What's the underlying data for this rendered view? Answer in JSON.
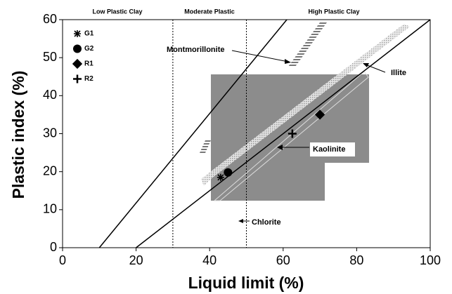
{
  "chart_data": {
    "type": "scatter",
    "xlabel": "Liquid limit (%)",
    "ylabel": "Plastic index (%)",
    "xlim": [
      0,
      100
    ],
    "ylim": [
      0,
      60
    ],
    "xticks": [
      0,
      20,
      40,
      60,
      80,
      100
    ],
    "yticks": [
      0,
      10,
      20,
      30,
      40,
      50,
      60
    ],
    "series": [
      {
        "name": "G1",
        "marker": "star",
        "color": "#000000",
        "x": [
          43
        ],
        "values": [
          18.5
        ]
      },
      {
        "name": "G2",
        "marker": "circle",
        "color": "#000000",
        "x": [
          45
        ],
        "values": [
          19.8
        ]
      },
      {
        "name": "R1",
        "marker": "diamond",
        "color": "#000000",
        "x": [
          70
        ],
        "values": [
          35
        ]
      },
      {
        "name": "R2",
        "marker": "plus",
        "color": "#000000",
        "x": [
          62.5
        ],
        "values": [
          30
        ]
      }
    ],
    "lines": [
      {
        "x": [
          10,
          61
        ],
        "values": [
          0,
          60
        ]
      },
      {
        "x": [
          20,
          100
        ],
        "values": [
          0,
          60
        ]
      }
    ],
    "boundaries": [
      30,
      50
    ],
    "zones": [
      "Low Plastic Clay",
      "Moderate Plastic",
      "High Plastic Clay"
    ],
    "annotations": [
      "Montmorillonite",
      "Illite",
      "Kaolinite",
      "Chlorite"
    ]
  }
}
